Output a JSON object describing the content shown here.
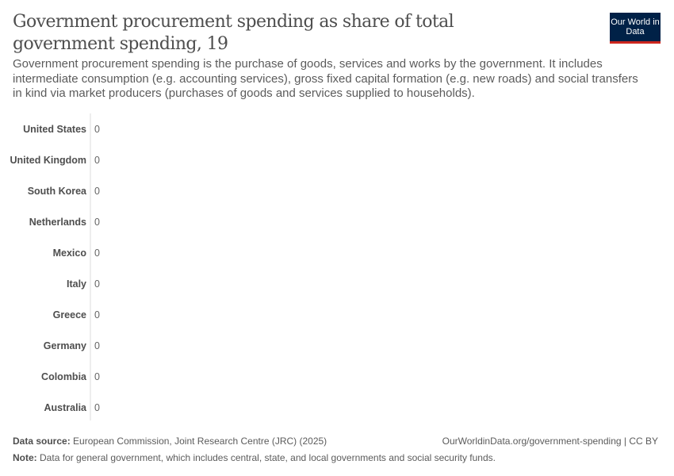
{
  "header": {
    "title": "Government procurement spending as share of total government spending, 19",
    "subtitle": "Government procurement spending is the purchase of goods, services and works by the government. It includes intermediate consumption (e.g. accounting services), gross fixed capital formation (e.g. new roads) and social transfers in kind via market producers (purchases of goods and services supplied to households).",
    "logo": "Our World in Data"
  },
  "chart_data": {
    "type": "bar",
    "orientation": "horizontal",
    "categories": [
      "United States",
      "United Kingdom",
      "South Korea",
      "Netherlands",
      "Mexico",
      "Italy",
      "Greece",
      "Germany",
      "Colombia",
      "Australia"
    ],
    "values": [
      0,
      0,
      0,
      0,
      0,
      0,
      0,
      0,
      0,
      0
    ],
    "value_labels": [
      "0",
      "0",
      "0",
      "0",
      "0",
      "0",
      "0",
      "0",
      "0",
      "0"
    ]
  },
  "footer": {
    "source_label": "Data source:",
    "source": "European Commission, Joint Research Centre (JRC) (2025)",
    "url": "OurWorldinData.org/government-spending | CC BY",
    "note_label": "Note:",
    "note": "Data for general government, which includes central, state, and local governments and social security funds."
  }
}
